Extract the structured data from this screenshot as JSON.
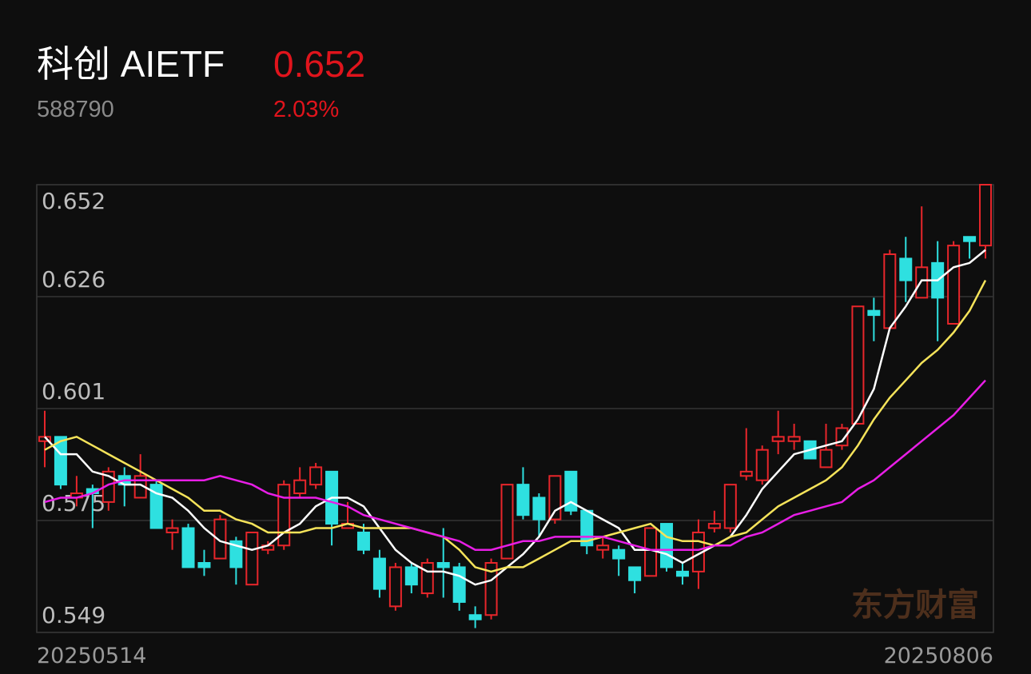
{
  "header": {
    "name": "科创 AIETF",
    "code": "588790",
    "price": "0.652",
    "change": "2.03%"
  },
  "chart_data": {
    "type": "candlestick",
    "watermark": "东方财富",
    "categories": [
      "20250514",
      null,
      null,
      null,
      null,
      null,
      null,
      null,
      null,
      null,
      null,
      null,
      null,
      null,
      null,
      null,
      null,
      null,
      null,
      null,
      null,
      null,
      null,
      null,
      null,
      null,
      null,
      null,
      null,
      null,
      null,
      null,
      null,
      null,
      null,
      null,
      null,
      null,
      null,
      null,
      null,
      null,
      null,
      null,
      null,
      null,
      null,
      null,
      null,
      null,
      null,
      null,
      null,
      null,
      null,
      null,
      null,
      null,
      null,
      "20250806"
    ],
    "open": [
      0.593,
      0.594,
      0.58,
      0.582,
      0.579,
      0.585,
      0.58,
      0.583,
      0.572,
      0.573,
      0.565,
      0.566,
      0.57,
      0.56,
      0.568,
      0.569,
      0.581,
      0.583,
      0.586,
      0.573,
      0.572,
      0.566,
      0.555,
      0.564,
      0.558,
      0.565,
      0.564,
      0.553,
      0.553,
      0.566,
      0.583,
      0.58,
      0.575,
      0.586,
      0.577,
      0.568,
      0.568,
      0.564,
      0.562,
      0.574,
      0.563,
      0.563,
      0.573,
      0.573,
      0.585,
      0.584,
      0.593,
      0.593,
      0.593,
      0.587,
      0.592,
      0.597,
      0.623,
      0.619,
      0.635,
      0.626,
      0.634,
      0.62,
      0.64,
      0.638
    ],
    "high": [
      0.6,
      0.594,
      0.585,
      0.583,
      0.587,
      0.587,
      0.59,
      0.584,
      0.575,
      0.574,
      0.568,
      0.576,
      0.571,
      0.572,
      0.57,
      0.584,
      0.587,
      0.588,
      0.586,
      0.579,
      0.574,
      0.568,
      0.565,
      0.565,
      0.566,
      0.573,
      0.565,
      0.555,
      0.566,
      0.583,
      0.587,
      0.581,
      0.585,
      0.586,
      0.577,
      0.571,
      0.569,
      0.564,
      0.573,
      0.574,
      0.565,
      0.575,
      0.577,
      0.583,
      0.596,
      0.592,
      0.6,
      0.597,
      0.593,
      0.597,
      0.597,
      0.624,
      0.626,
      0.637,
      0.64,
      0.647,
      0.639,
      0.639,
      0.64,
      0.652
    ],
    "low": [
      0.587,
      0.582,
      0.578,
      0.573,
      0.577,
      0.578,
      0.58,
      0.573,
      0.568,
      0.564,
      0.562,
      0.566,
      0.56,
      0.56,
      0.567,
      0.568,
      0.58,
      0.582,
      0.569,
      0.573,
      0.567,
      0.557,
      0.554,
      0.558,
      0.557,
      0.557,
      0.554,
      0.55,
      0.552,
      0.566,
      0.575,
      0.571,
      0.574,
      0.576,
      0.567,
      0.566,
      0.562,
      0.558,
      0.562,
      0.563,
      0.56,
      0.559,
      0.572,
      0.572,
      0.584,
      0.583,
      0.59,
      0.591,
      0.589,
      0.587,
      0.591,
      0.597,
      0.616,
      0.619,
      0.625,
      0.626,
      0.616,
      0.62,
      0.635,
      0.635
    ],
    "close": [
      0.594,
      0.583,
      0.581,
      0.581,
      0.586,
      0.583,
      0.585,
      0.573,
      0.573,
      0.564,
      0.564,
      0.575,
      0.564,
      0.572,
      0.569,
      0.583,
      0.584,
      0.587,
      0.574,
      0.574,
      0.568,
      0.559,
      0.564,
      0.56,
      0.565,
      0.564,
      0.556,
      0.552,
      0.565,
      0.583,
      0.576,
      0.575,
      0.585,
      0.577,
      0.569,
      0.569,
      0.566,
      0.561,
      0.573,
      0.564,
      0.562,
      0.572,
      0.574,
      0.583,
      0.586,
      0.591,
      0.594,
      0.594,
      0.589,
      0.591,
      0.596,
      0.624,
      0.622,
      0.636,
      0.63,
      0.633,
      0.626,
      0.638,
      0.639,
      0.652
    ],
    "up_color": "#e8262b",
    "down_color": "#2ee0e0",
    "lines": [
      {
        "color": "#ffffff",
        "values": [
          0.594,
          0.59,
          0.59,
          0.586,
          0.585,
          0.583,
          0.583,
          0.581,
          0.58,
          0.577,
          0.573,
          0.57,
          0.569,
          0.568,
          0.569,
          0.572,
          0.574,
          0.578,
          0.58,
          0.58,
          0.578,
          0.573,
          0.568,
          0.565,
          0.563,
          0.563,
          0.562,
          0.56,
          0.561,
          0.564,
          0.567,
          0.571,
          0.577,
          0.579,
          0.577,
          0.575,
          0.573,
          0.568,
          0.568,
          0.567,
          0.565,
          0.567,
          0.569,
          0.571,
          0.576,
          0.582,
          0.586,
          0.59,
          0.591,
          0.592,
          0.593,
          0.598,
          0.605,
          0.619,
          0.624,
          0.63,
          0.63,
          0.633,
          0.634,
          0.637
        ]
      },
      {
        "color": "#f5e35a",
        "values": [
          0.591,
          0.593,
          0.594,
          0.592,
          0.59,
          0.588,
          0.586,
          0.584,
          0.582,
          0.58,
          0.577,
          0.577,
          0.575,
          0.574,
          0.572,
          0.572,
          0.572,
          0.573,
          0.573,
          0.574,
          0.573,
          0.573,
          0.573,
          0.573,
          0.572,
          0.571,
          0.568,
          0.564,
          0.563,
          0.564,
          0.564,
          0.566,
          0.568,
          0.57,
          0.57,
          0.571,
          0.572,
          0.573,
          0.574,
          0.571,
          0.57,
          0.57,
          0.569,
          0.571,
          0.572,
          0.575,
          0.578,
          0.58,
          0.582,
          0.584,
          0.587,
          0.592,
          0.598,
          0.603,
          0.607,
          0.611,
          0.614,
          0.618,
          0.623,
          0.63
        ]
      },
      {
        "color": "#e81ee6",
        "values": [
          0.579,
          0.58,
          0.58,
          0.581,
          0.583,
          0.584,
          0.584,
          0.584,
          0.584,
          0.584,
          0.584,
          0.585,
          0.584,
          0.583,
          0.581,
          0.58,
          0.58,
          0.58,
          0.579,
          0.578,
          0.576,
          0.575,
          0.574,
          0.573,
          0.572,
          0.571,
          0.57,
          0.568,
          0.568,
          0.569,
          0.57,
          0.57,
          0.571,
          0.571,
          0.571,
          0.571,
          0.57,
          0.569,
          0.568,
          0.568,
          0.568,
          0.568,
          0.569,
          0.569,
          0.571,
          0.572,
          0.574,
          0.576,
          0.577,
          0.578,
          0.579,
          0.582,
          0.584,
          0.587,
          0.59,
          0.593,
          0.596,
          0.599,
          0.603,
          0.607
        ]
      }
    ],
    "ylim": [
      0.549,
      0.652
    ],
    "yticks": [
      0.549,
      {
        "value": 0.57475,
        "label": "0.575"
      },
      {
        "value": 0.6005,
        "label": "0.601"
      },
      {
        "value": 0.62625,
        "label": "0.626"
      },
      0.652
    ],
    "grid": true
  }
}
